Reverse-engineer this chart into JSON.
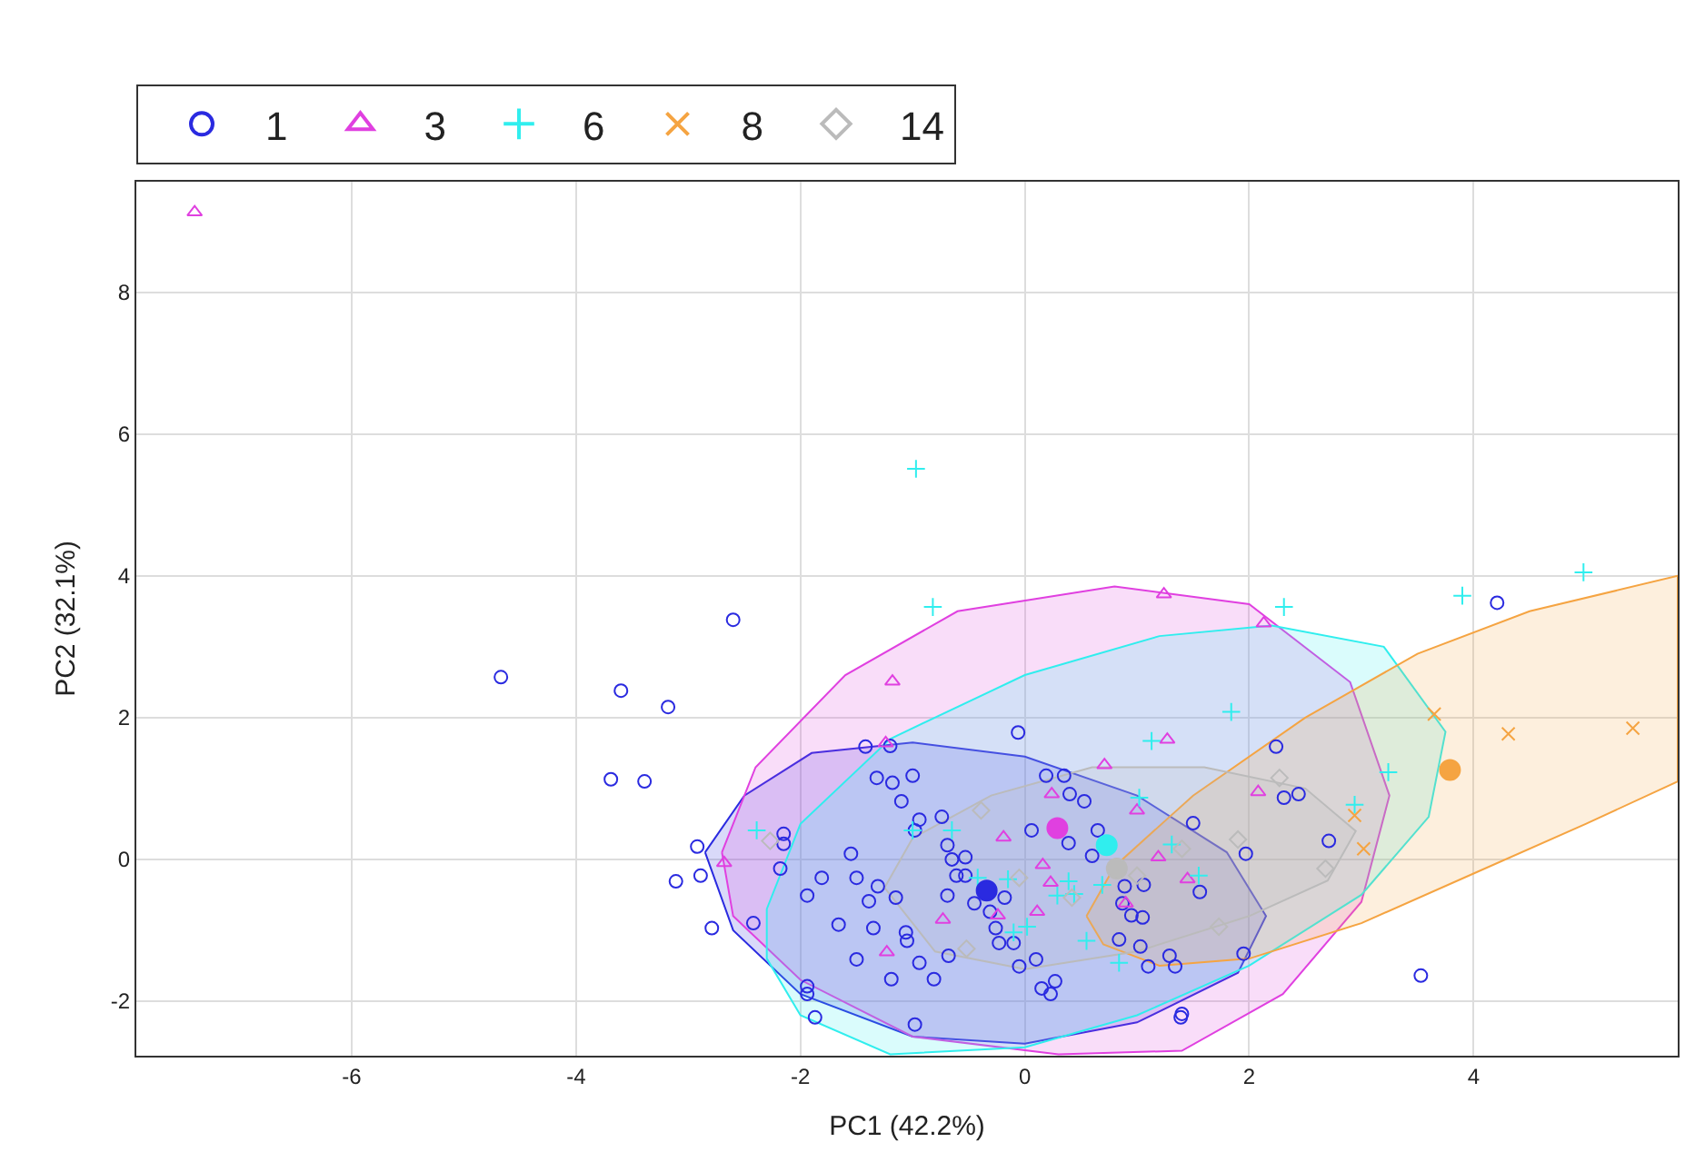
{
  "chart_data": {
    "type": "scatter",
    "xlabel": "PC1 (42.2%)",
    "ylabel": "PC2 (32.1%)",
    "xlim": [
      -7.92,
      5.82
    ],
    "ylim": [
      -2.77,
      9.56
    ],
    "xticks": [
      -6,
      -4,
      -2,
      0,
      2,
      4
    ],
    "yticks": [
      -2,
      0,
      2,
      4,
      6,
      8
    ],
    "grid": true,
    "legend": "top left",
    "series": [
      {
        "type": "area",
        "color": "#2a2ae0",
        "x": [
          -2.85,
          -2.5,
          -1.9,
          -1.0,
          0,
          1.0,
          1.8,
          2.15,
          1.9,
          1.0,
          0,
          -1.0,
          -2.0,
          -2.6,
          -2.85
        ],
        "values": [
          0.1,
          0.9,
          1.5,
          1.65,
          1.45,
          0.9,
          0.1,
          -0.8,
          -1.6,
          -2.3,
          -2.6,
          -2.5,
          -1.9,
          -1.0,
          0.1
        ]
      },
      {
        "type": "area",
        "color": "#e040e0",
        "x": [
          -2.7,
          -2.4,
          -1.6,
          -0.6,
          0.8,
          2.0,
          2.9,
          3.25,
          3.0,
          2.3,
          1.4,
          0.3,
          -1.0,
          -2.0,
          -2.6,
          -2.7
        ],
        "values": [
          0.1,
          1.3,
          2.6,
          3.5,
          3.85,
          3.6,
          2.5,
          0.9,
          -0.6,
          -1.9,
          -2.7,
          -2.75,
          -2.5,
          -1.7,
          -0.8,
          0.1
        ]
      },
      {
        "type": "area",
        "color": "#30eeee",
        "x": [
          -2.3,
          -2.0,
          -1.2,
          0,
          1.2,
          2.2,
          3.2,
          3.75,
          3.6,
          3.0,
          2.0,
          1.0,
          0,
          -1.2,
          -2.0,
          -2.3,
          -2.3
        ],
        "values": [
          -0.7,
          0.5,
          1.7,
          2.6,
          3.15,
          3.3,
          3.0,
          1.8,
          0.6,
          -0.5,
          -1.5,
          -2.2,
          -2.65,
          -2.75,
          -2.2,
          -1.4,
          -0.7
        ]
      },
      {
        "type": "area",
        "color": "#f5a442",
        "x": [
          0.55,
          0.8,
          1.5,
          2.5,
          3.5,
          4.5,
          5.82,
          5.82,
          5.0,
          4.0,
          3.0,
          2.0,
          1.2,
          0.7,
          0.55
        ],
        "values": [
          -0.8,
          -0.1,
          0.9,
          2.0,
          2.9,
          3.5,
          4.0,
          1.1,
          0.5,
          -0.2,
          -0.9,
          -1.4,
          -1.5,
          -1.2,
          -0.8
        ]
      },
      {
        "type": "area",
        "color": "#bbbbbb",
        "x": [
          -1.25,
          -1.0,
          -0.3,
          0.6,
          1.6,
          2.5,
          2.95,
          2.7,
          2.0,
          1.0,
          0,
          -0.8,
          -1.25
        ],
        "values": [
          -0.4,
          0.3,
          0.9,
          1.3,
          1.3,
          1.0,
          0.4,
          -0.3,
          -0.8,
          -1.3,
          -1.55,
          -1.3,
          -0.4
        ]
      },
      {
        "name": "1",
        "type": "scatter",
        "marker": "circle",
        "color": "#2a2ae0",
        "x": [
          -4.67,
          -2.6,
          -3.6,
          -3.18,
          -3.69,
          -3.39,
          -2.92,
          -2.15,
          -2.15,
          -3.11,
          -2.89,
          -2.79,
          -2.42,
          -2.18,
          -1.94,
          -1.94,
          -1.87,
          -1.42,
          -1.2,
          -0.06,
          -1.32,
          -1.18,
          -1.1,
          -1.0,
          -0.94,
          -0.74,
          -0.98,
          -1.55,
          -1.81,
          -1.94,
          -1.5,
          -1.39,
          -1.31,
          -1.15,
          -1.66,
          -1.35,
          -1.06,
          -1.05,
          -1.5,
          -1.19,
          -0.94,
          -0.81,
          -0.68,
          -0.98,
          -0.69,
          -0.65,
          -0.53,
          -0.61,
          -0.53,
          -0.69,
          -0.45,
          -0.31,
          -0.18,
          -0.26,
          -0.23,
          -0.1,
          -0.05,
          0.1,
          0.15,
          0.23,
          0.27,
          0.06,
          0.19,
          0.35,
          0.4,
          0.53,
          0.39,
          0.65,
          0.6,
          0.89,
          1.06,
          0.87,
          0.95,
          1.05,
          0.84,
          1.03,
          1.29,
          1.1,
          1.34,
          1.5,
          1.56,
          1.97,
          1.95,
          2.24,
          2.31,
          2.44,
          2.71,
          1.4,
          1.39,
          4.21,
          3.53
        ],
        "values": [
          2.57,
          3.38,
          2.38,
          2.15,
          1.13,
          1.1,
          0.18,
          0.36,
          0.22,
          -0.31,
          -0.23,
          -0.97,
          -0.9,
          -0.13,
          -1.79,
          -1.9,
          -2.23,
          1.59,
          1.6,
          1.79,
          1.15,
          1.08,
          0.82,
          1.18,
          0.56,
          0.6,
          0.41,
          0.08,
          -0.26,
          -0.51,
          -0.26,
          -0.59,
          -0.38,
          -0.54,
          -0.92,
          -0.97,
          -1.03,
          -1.15,
          -1.41,
          -1.69,
          -1.46,
          -1.69,
          -1.36,
          -2.33,
          0.2,
          0.0,
          0.03,
          -0.23,
          -0.23,
          -0.51,
          -0.62,
          -0.74,
          -0.54,
          -0.97,
          -1.18,
          -1.18,
          -1.51,
          -1.41,
          -1.82,
          -1.9,
          -1.72,
          0.41,
          1.18,
          1.18,
          0.92,
          0.82,
          0.23,
          0.41,
          0.05,
          -0.38,
          -0.36,
          -0.62,
          -0.79,
          -0.82,
          -1.13,
          -1.23,
          -1.36,
          -1.51,
          -1.51,
          0.51,
          -0.46,
          0.08,
          -1.33,
          1.59,
          0.87,
          0.92,
          0.26,
          -2.18,
          -2.23,
          3.62,
          -1.64
        ]
      },
      {
        "name": "3",
        "type": "scatter",
        "marker": "triangle",
        "color": "#e040e0",
        "x": [
          -7.4,
          -1.18,
          -1.24,
          -2.68,
          -1.23,
          1.24,
          2.13,
          1.27,
          0.71,
          0.24,
          1.0,
          2.08,
          -0.19,
          0.16,
          0.23,
          1.19,
          1.45,
          0.11,
          -0.73,
          -0.24,
          0.9
        ],
        "values": [
          9.13,
          2.51,
          1.64,
          -0.05,
          -1.31,
          3.74,
          3.33,
          1.69,
          1.33,
          0.92,
          0.69,
          0.95,
          0.31,
          -0.08,
          -0.33,
          0.03,
          -0.28,
          -0.74,
          -0.85,
          -0.79,
          -0.62
        ]
      },
      {
        "name": "6",
        "type": "scatter",
        "marker": "cross",
        "color": "#30eeee",
        "x": [
          -0.97,
          -0.82,
          2.31,
          1.84,
          1.13,
          3.24,
          1.02,
          -2.39,
          -1.0,
          -0.65,
          -0.15,
          0.39,
          0.29,
          0.44,
          0.69,
          1.31,
          1.55,
          0.02,
          -0.1,
          0.55,
          0.84,
          2.94,
          4.98,
          3.9,
          -0.42
        ],
        "values": [
          5.51,
          3.56,
          3.56,
          2.08,
          1.67,
          1.23,
          0.87,
          0.41,
          0.41,
          0.41,
          -0.28,
          -0.31,
          -0.51,
          -0.49,
          -0.36,
          0.21,
          -0.23,
          -0.95,
          -1.03,
          -1.15,
          -1.46,
          0.77,
          4.05,
          3.72,
          -0.26
        ]
      },
      {
        "name": "8",
        "type": "scatter",
        "marker": "x",
        "color": "#f5a442",
        "x": [
          3.65,
          4.31,
          5.42,
          2.94,
          3.02
        ],
        "values": [
          2.05,
          1.77,
          1.85,
          0.62,
          0.15
        ]
      },
      {
        "name": "14",
        "type": "scatter",
        "marker": "diamond",
        "color": "#bbbbbb",
        "x": [
          -2.27,
          -0.39,
          -0.05,
          0.42,
          -0.52,
          2.27,
          1.9,
          2.68,
          1.73,
          1.4,
          1.0
        ],
        "values": [
          0.26,
          0.69,
          -0.26,
          -0.54,
          -1.26,
          1.15,
          0.28,
          -0.13,
          -0.95,
          0.15,
          -0.23
        ]
      },
      {
        "type": "scatter",
        "marker": "circle",
        "color": "#2a2ae0",
        "x": [
          -0.34
        ],
        "values": [
          -0.44
        ]
      },
      {
        "type": "scatter",
        "marker": "circle",
        "color": "#e040e0",
        "x": [
          0.29
        ],
        "values": [
          0.44
        ]
      },
      {
        "type": "scatter",
        "marker": "circle",
        "color": "#30eeee",
        "x": [
          0.73
        ],
        "values": [
          0.2
        ]
      },
      {
        "type": "scatter",
        "marker": "circle",
        "color": "#bbbbbb",
        "x": [
          0.82
        ],
        "values": [
          -0.13
        ]
      },
      {
        "type": "scatter",
        "marker": "circle",
        "color": "#f5a442",
        "x": [
          3.79
        ],
        "values": [
          1.26
        ]
      }
    ]
  }
}
